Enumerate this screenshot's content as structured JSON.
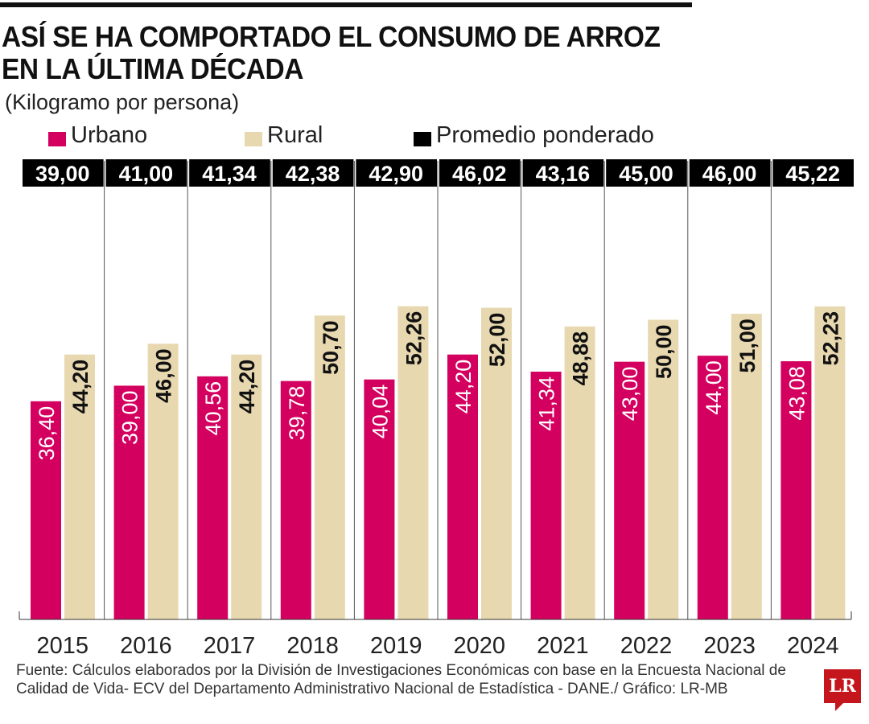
{
  "colors": {
    "urban": "#d4005f",
    "rural": "#e8d8b0",
    "avg": "#000000"
  },
  "chart_data": {
    "type": "bar",
    "title": "ASÍ SE HA COMPORTADO EL CONSUMO DE ARROZ EN LA ÚLTIMA DÉCADA",
    "subtitle": "(Kilogramo por persona)",
    "categories": [
      "2015",
      "2016",
      "2017",
      "2018",
      "2019",
      "2020",
      "2021",
      "2022",
      "2023",
      "2024"
    ],
    "series": [
      {
        "name": "Urbano",
        "values": [
          36.4,
          39.0,
          40.56,
          39.78,
          40.04,
          44.2,
          41.34,
          43.0,
          44.0,
          43.08
        ],
        "labels": [
          "36,40",
          "39,00",
          "40,56",
          "39,78",
          "40,04",
          "44,20",
          "41,34",
          "43,00",
          "44,00",
          "43,08"
        ]
      },
      {
        "name": "Rural",
        "values": [
          44.2,
          46.0,
          44.2,
          50.7,
          52.26,
          52.0,
          48.88,
          50.0,
          51.0,
          52.23
        ],
        "labels": [
          "44,20",
          "46,00",
          "44,20",
          "50,70",
          "52,26",
          "52,00",
          "48,88",
          "50,00",
          "51,00",
          "52,23"
        ]
      },
      {
        "name": "Promedio ponderado",
        "values": [
          39.0,
          41.0,
          41.34,
          42.38,
          42.9,
          46.02,
          43.16,
          45.0,
          46.0,
          45.22
        ],
        "labels": [
          "39,00",
          "41,00",
          "41,34",
          "42,38",
          "42,90",
          "46,02",
          "43,16",
          "45,00",
          "46,00",
          "45,22"
        ]
      }
    ],
    "ylim": [
      0,
      60
    ],
    "grid": false,
    "legend": "top"
  },
  "source": "Fuente: Cálculos elaborados por la División de Investigaciones Económicas con base en la Encuesta Nacional de Calidad de Vida- ECV del Departamento Administrativo Nacional de Estadística - DANE./ Gráfico: LR-MB",
  "logo": "LR"
}
